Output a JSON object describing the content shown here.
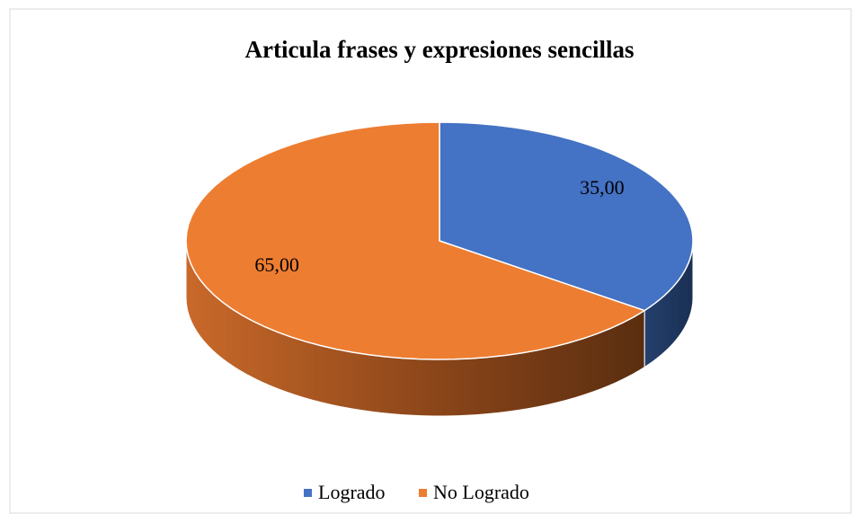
{
  "chart_data": {
    "type": "pie",
    "title": "Articula frases y expresiones sencillas",
    "categories": [
      "Logrado",
      "No Logrado"
    ],
    "values": [
      35,
      65
    ],
    "value_labels": [
      "35,00",
      "65,00"
    ],
    "colors": [
      "#4472c4",
      "#ed7d31"
    ],
    "legend": "bottom"
  }
}
